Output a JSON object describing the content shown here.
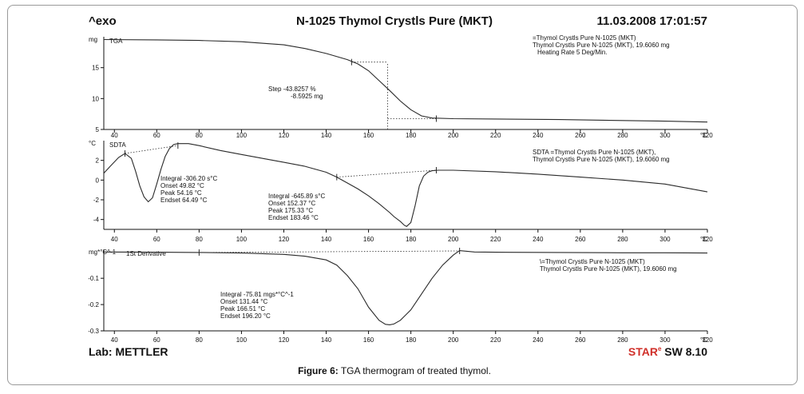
{
  "header": {
    "left": "^exo",
    "center": "N-1025 Thymol Crystls Pure (MKT)",
    "right": "11.03.2008 17:01:57"
  },
  "footer": {
    "left": "Lab: METTLER",
    "right_brand": "STAR",
    "right_mark": "e",
    "right_version": " SW 8.10"
  },
  "caption": {
    "label": "Figure 6:",
    "text": " TGA thermogram of treated thymol."
  },
  "colors": {
    "curve": "#2a2a2a",
    "axis": "#111111",
    "frame": "#9a9a9a"
  },
  "chart_data": [
    {
      "type": "line",
      "name_label": "TGA",
      "unit_label": "mg",
      "xlim": [
        35,
        320
      ],
      "ylim": [
        5,
        20
      ],
      "x_ticks": [
        "40",
        "60",
        "80",
        "100",
        "120",
        "140",
        "160",
        "180",
        "200",
        "220",
        "240",
        "260",
        "280",
        "300",
        "320"
      ],
      "x_unit": "°C",
      "y_ticks": [
        5,
        10,
        15
      ],
      "x": [
        35,
        60,
        80,
        100,
        120,
        130,
        140,
        150,
        155,
        160,
        165,
        170,
        175,
        180,
        185,
        190,
        200,
        220,
        250,
        280,
        300,
        320
      ],
      "y": [
        19.55,
        19.5,
        19.4,
        19.2,
        18.7,
        18.1,
        17.3,
        16.3,
        15.6,
        14.5,
        12.9,
        11.3,
        9.6,
        8.2,
        7.2,
        6.85,
        6.75,
        6.7,
        6.6,
        6.45,
        6.35,
        6.2
      ],
      "legend_lines": [
        "=Thymol Crystls Pure N-1025 (MKT)",
        "Thymol Crystls Pure N-1025 (MKT), 19.6060 mg",
        "Heating Rate 5 Deg/Min."
      ],
      "annotations": [
        {
          "lines": [
            "Step  -43.8257 %",
            "-8.5925 mg"
          ]
        }
      ],
      "step_markers": [
        {
          "x": 152,
          "y": 15.9
        },
        {
          "x": 192,
          "y": 6.75
        }
      ],
      "step_mid": {
        "x": 169,
        "y": 11.5
      }
    },
    {
      "type": "line",
      "name_label": "SDTA",
      "unit_label": "°C",
      "xlim": [
        35,
        320
      ],
      "ylim": [
        -5,
        4
      ],
      "x_ticks": [
        "40",
        "60",
        "80",
        "100",
        "120",
        "140",
        "160",
        "180",
        "200",
        "220",
        "240",
        "260",
        "280",
        "300",
        "320"
      ],
      "x_unit": "°C",
      "y_ticks": [
        -4,
        -2,
        0,
        2
      ],
      "x": [
        35,
        38,
        42,
        45,
        48,
        50,
        52,
        54,
        56,
        58,
        60,
        62,
        64,
        66,
        68,
        70,
        75,
        80,
        90,
        100,
        110,
        120,
        130,
        140,
        145,
        150,
        155,
        160,
        165,
        170,
        172,
        175,
        177,
        178,
        180,
        182,
        184,
        186,
        188,
        190,
        193,
        200,
        220,
        240,
        260,
        280,
        300,
        320
      ],
      "y": [
        0.7,
        1.4,
        2.3,
        2.7,
        2.2,
        0.9,
        -0.6,
        -1.7,
        -2.2,
        -1.8,
        -0.4,
        1.1,
        2.4,
        3.2,
        3.6,
        3.7,
        3.7,
        3.5,
        3.0,
        2.6,
        2.2,
        1.8,
        1.4,
        0.8,
        0.3,
        -0.3,
        -0.9,
        -1.6,
        -2.4,
        -3.3,
        -3.7,
        -4.2,
        -4.6,
        -4.7,
        -4.3,
        -2.6,
        -0.6,
        0.4,
        0.8,
        0.95,
        1.0,
        1.0,
        0.85,
        0.6,
        0.3,
        0.0,
        -0.4,
        -1.2
      ],
      "legend_lines": [
        "SDTA =Thymol Crystls Pure N-1025 (MKT),",
        "Thymol Crystls Pure N-1025 (MKT), 19.6060 mg"
      ],
      "annotations": [
        {
          "lines": [
            "Integral  -306.20 s°C",
            "Onset     49.82 °C",
            "Peak      54.16 °C",
            "Endset    64.49 °C"
          ]
        },
        {
          "lines": [
            "Integral  -645.89 s°C",
            "Onset    152.37 °C",
            "Peak     175.33 °C",
            "Endset   183.46 °C"
          ]
        }
      ],
      "baselines": [
        [
          45,
          2.7,
          70,
          3.5
        ],
        [
          145,
          0.3,
          192,
          1.0
        ]
      ]
    },
    {
      "type": "line",
      "name_label": "1St Derivative",
      "unit_label": "mg*°C^-1",
      "xlim": [
        35,
        320
      ],
      "ylim": [
        -0.3,
        0.01
      ],
      "x_ticks": [
        "40",
        "60",
        "80",
        "100",
        "120",
        "140",
        "160",
        "180",
        "200",
        "220",
        "240",
        "260",
        "280",
        "300",
        "320"
      ],
      "x_unit": "°C",
      "y_ticks": [
        -0.3,
        -0.2,
        -0.1
      ],
      "x": [
        35,
        60,
        80,
        100,
        120,
        130,
        140,
        145,
        150,
        155,
        160,
        165,
        168,
        170,
        172,
        175,
        180,
        185,
        190,
        195,
        200,
        203,
        210,
        220,
        250,
        280,
        300,
        320
      ],
      "y": [
        0.0,
        -0.001,
        -0.002,
        -0.004,
        -0.009,
        -0.016,
        -0.03,
        -0.05,
        -0.09,
        -0.14,
        -0.21,
        -0.26,
        -0.275,
        -0.277,
        -0.274,
        -0.26,
        -0.22,
        -0.16,
        -0.1,
        -0.05,
        -0.012,
        0.005,
        0.0,
        -0.001,
        -0.002,
        -0.003,
        -0.003,
        -0.004
      ],
      "legend_lines": [
        "\\=Thymol Crystls Pure N-1025 (MKT)",
        "Thymol Crystls Pure N-1025 (MKT), 19.6060 mg"
      ],
      "annotations": [
        {
          "lines": [
            "Integral  -75.81 mgs*°C^-1",
            "Onset     131.44 °C",
            "Peak      166.51 °C",
            "Endset    196.20 °C"
          ]
        }
      ],
      "baselines": [
        [
          80,
          -0.002,
          203,
          0.004
        ]
      ]
    }
  ]
}
